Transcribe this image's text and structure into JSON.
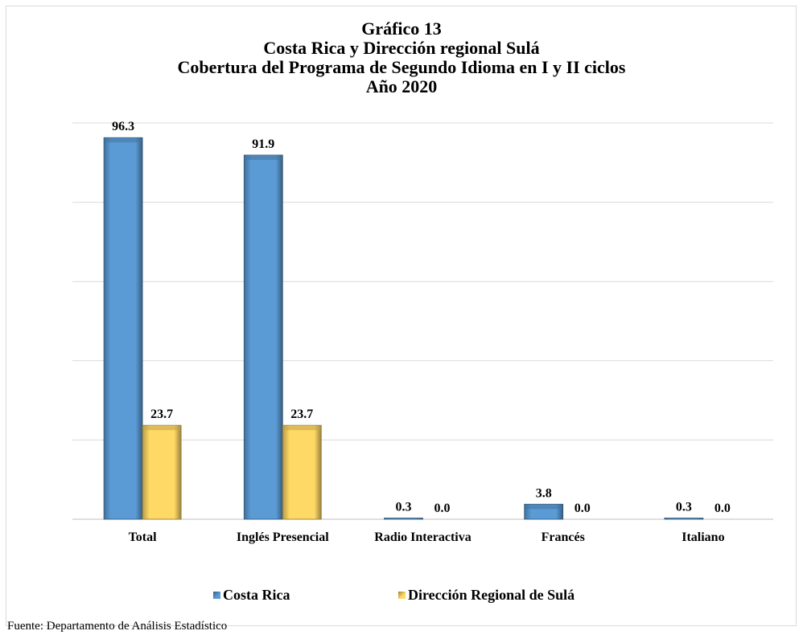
{
  "titles": {
    "line1": "Gráfico 13",
    "line2": "Costa Rica y  Dirección regional  Sulá",
    "line3": "Cobertura  del Programa de Segundo Idioma en I y II ciclos",
    "line4": "Año 2020"
  },
  "source": "Fuente: Departamento de Análisis  Estadístico",
  "chart_data": {
    "type": "bar",
    "categories": [
      "Total",
      "Inglés Presencial",
      "Radio Interactiva",
      "Francés",
      "Italiano"
    ],
    "series": [
      {
        "name": "Costa Rica",
        "values": [
          96.3,
          91.9,
          0.3,
          3.8,
          0.3
        ],
        "value_labels": [
          "96.3",
          "91.9",
          "0.3",
          "3.8",
          "0.3"
        ],
        "color": "#5b9bd5"
      },
      {
        "name": "Dirección Regional de Sulá",
        "values": [
          23.7,
          23.7,
          0.0,
          0.0,
          0.0
        ],
        "value_labels": [
          "23.7",
          "23.7",
          "0.0",
          "0.0",
          "0.0"
        ],
        "color": "#ffd966"
      }
    ],
    "ylim": [
      0,
      100
    ],
    "grid": true,
    "legend_position": "bottom"
  }
}
